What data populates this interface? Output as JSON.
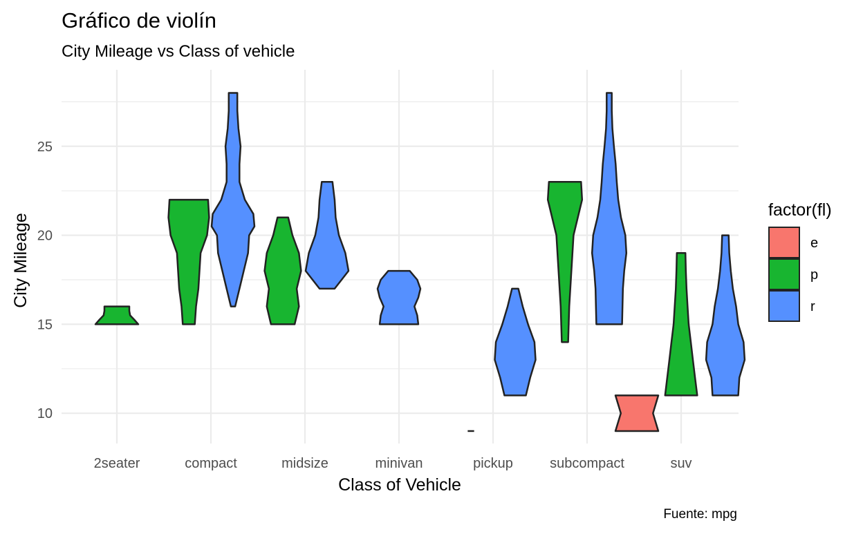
{
  "chart_data": {
    "type": "violin",
    "title": "Gráfico de violín",
    "subtitle": "City Mileage vs Class of vehicle",
    "xlabel": "Class of Vehicle",
    "ylabel": "City Mileage",
    "caption": "Fuente: mpg",
    "categories": [
      "2seater",
      "compact",
      "midsize",
      "minivan",
      "pickup",
      "subcompact",
      "suv"
    ],
    "y_ticks": [
      10,
      15,
      20,
      25
    ],
    "ylim": [
      8.3,
      29.3
    ],
    "grid": true,
    "legend": {
      "title": "factor(fl)",
      "position": "right",
      "entries": [
        {
          "key": "e",
          "label": "e"
        },
        {
          "key": "p",
          "label": "p"
        },
        {
          "key": "r",
          "label": "r"
        }
      ]
    },
    "colors": {
      "e": "#F8766D",
      "p": "#18B530",
      "r": "#5590FF",
      "outline": "#222222",
      "grid": "#EBEBEB",
      "text": "#4D4D4D"
    },
    "violins": [
      {
        "category": "2seater",
        "fl": "p",
        "min": 15,
        "max": 16,
        "profile": [
          [
            15,
            1.0
          ],
          [
            15.25,
            0.82
          ],
          [
            15.5,
            0.62
          ],
          [
            15.75,
            0.58
          ],
          [
            16,
            0.58
          ]
        ]
      },
      {
        "category": "compact",
        "fl": "p",
        "min": 15,
        "max": 22,
        "profile": [
          [
            15,
            0.28
          ],
          [
            16,
            0.34
          ],
          [
            17,
            0.45
          ],
          [
            18,
            0.5
          ],
          [
            19,
            0.55
          ],
          [
            20,
            0.85
          ],
          [
            21,
            0.95
          ],
          [
            22,
            0.9
          ]
        ]
      },
      {
        "category": "compact",
        "fl": "r",
        "min": 16,
        "max": 28,
        "profile": [
          [
            16,
            0.1
          ],
          [
            17,
            0.3
          ],
          [
            18,
            0.5
          ],
          [
            19,
            0.7
          ],
          [
            20,
            0.75
          ],
          [
            20.5,
            1.0
          ],
          [
            21.2,
            0.95
          ],
          [
            22,
            0.55
          ],
          [
            23,
            0.3
          ],
          [
            24,
            0.3
          ],
          [
            25,
            0.35
          ],
          [
            26,
            0.25
          ],
          [
            27,
            0.2
          ],
          [
            28,
            0.2
          ]
        ]
      },
      {
        "category": "midsize",
        "fl": "p",
        "min": 15,
        "max": 21,
        "profile": [
          [
            15,
            0.55
          ],
          [
            16,
            0.75
          ],
          [
            17,
            0.65
          ],
          [
            18,
            0.85
          ],
          [
            19,
            0.75
          ],
          [
            20,
            0.45
          ],
          [
            21,
            0.25
          ]
        ]
      },
      {
        "category": "midsize",
        "fl": "r",
        "min": 17,
        "max": 23,
        "profile": [
          [
            17,
            0.35
          ],
          [
            18,
            1.0
          ],
          [
            19,
            0.85
          ],
          [
            20,
            0.55
          ],
          [
            21,
            0.4
          ],
          [
            22,
            0.35
          ],
          [
            23,
            0.25
          ]
        ]
      },
      {
        "category": "minivan",
        "fl": "r",
        "min": 15,
        "max": 18,
        "profile": [
          [
            15,
            0.9
          ],
          [
            15.5,
            0.85
          ],
          [
            16,
            0.72
          ],
          [
            16.5,
            0.9
          ],
          [
            17,
            1.0
          ],
          [
            17.5,
            0.85
          ],
          [
            18,
            0.5
          ]
        ]
      },
      {
        "category": "pickup",
        "fl": "e",
        "min": 9,
        "max": 9,
        "profile": [
          [
            9,
            0.15
          ]
        ]
      },
      {
        "category": "pickup",
        "fl": "r",
        "min": 11,
        "max": 17,
        "profile": [
          [
            11,
            0.5
          ],
          [
            12,
            0.7
          ],
          [
            13,
            0.95
          ],
          [
            14,
            0.9
          ],
          [
            15,
            0.6
          ],
          [
            16,
            0.35
          ],
          [
            17,
            0.15
          ]
        ]
      },
      {
        "category": "subcompact",
        "fl": "p",
        "min": 14,
        "max": 23,
        "profile": [
          [
            14,
            0.15
          ],
          [
            16,
            0.2
          ],
          [
            18,
            0.3
          ],
          [
            20,
            0.4
          ],
          [
            22,
            0.8
          ],
          [
            23,
            0.75
          ]
        ]
      },
      {
        "category": "subcompact",
        "fl": "r",
        "min": 15,
        "max": 28,
        "profile": [
          [
            15,
            0.6
          ],
          [
            16,
            0.62
          ],
          [
            17,
            0.64
          ],
          [
            18,
            0.7
          ],
          [
            19,
            0.8
          ],
          [
            20,
            0.75
          ],
          [
            21,
            0.55
          ],
          [
            22,
            0.42
          ],
          [
            23,
            0.35
          ],
          [
            24,
            0.3
          ],
          [
            25,
            0.22
          ],
          [
            26,
            0.15
          ],
          [
            27,
            0.12
          ],
          [
            28,
            0.12
          ]
        ]
      },
      {
        "category": "suv",
        "fl": "e",
        "min": 9,
        "max": 11,
        "profile": [
          [
            9,
            1.0
          ],
          [
            10,
            0.75
          ],
          [
            11,
            1.0
          ]
        ]
      },
      {
        "category": "suv",
        "fl": "p",
        "min": 11,
        "max": 19,
        "profile": [
          [
            11,
            0.75
          ],
          [
            12,
            0.65
          ],
          [
            13,
            0.55
          ],
          [
            14,
            0.45
          ],
          [
            15,
            0.35
          ],
          [
            16,
            0.3
          ],
          [
            17,
            0.25
          ],
          [
            18,
            0.22
          ],
          [
            19,
            0.2
          ]
        ]
      },
      {
        "category": "suv",
        "fl": "r",
        "min": 11,
        "max": 20,
        "profile": [
          [
            11,
            0.6
          ],
          [
            12,
            0.65
          ],
          [
            13,
            0.9
          ],
          [
            14,
            0.85
          ],
          [
            15,
            0.6
          ],
          [
            16,
            0.5
          ],
          [
            17,
            0.35
          ],
          [
            18,
            0.25
          ],
          [
            19,
            0.18
          ],
          [
            20,
            0.15
          ]
        ]
      }
    ]
  }
}
